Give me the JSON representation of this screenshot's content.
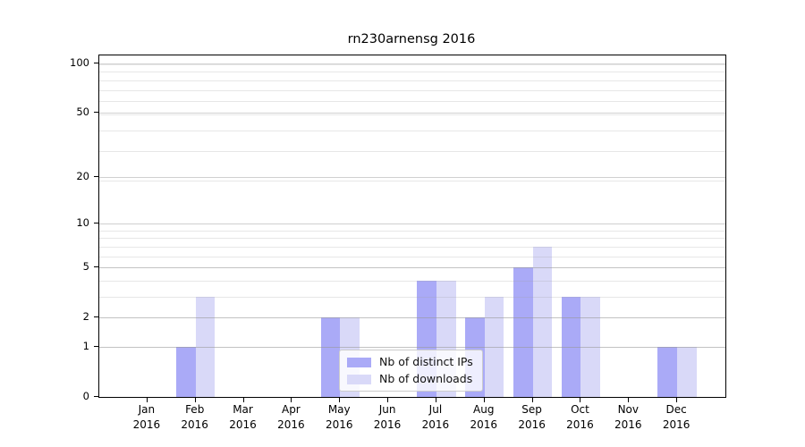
{
  "chart_data": {
    "type": "bar",
    "title": "rn230arnensg 2016",
    "categories": [
      "Jan",
      "Feb",
      "Mar",
      "Apr",
      "May",
      "Jun",
      "Jul",
      "Aug",
      "Sep",
      "Oct",
      "Nov",
      "Dec"
    ],
    "year": "2016",
    "series": [
      {
        "name": "Nb of distinct IPs",
        "key": "distinct-ips",
        "color": "#aaaaf7",
        "values": [
          0,
          1,
          0,
          0,
          2,
          0,
          4,
          2,
          5,
          3,
          0,
          1
        ]
      },
      {
        "name": "Nb of downloads",
        "key": "downloads",
        "color": "#d9d9f8",
        "values": [
          0,
          3,
          0,
          0,
          2,
          0,
          4,
          3,
          7,
          3,
          0,
          1
        ]
      }
    ],
    "yscale": "log1p",
    "ylim": [
      0,
      112
    ],
    "xlabel": "",
    "ylabel": "",
    "ytick_values": [
      0,
      1,
      2,
      5,
      10,
      20,
      50,
      100
    ],
    "grid": true,
    "grid_major_values": [
      1,
      2,
      5,
      10,
      20,
      50,
      100
    ],
    "grid_minor_values": [
      1,
      2,
      3,
      4,
      5,
      6,
      7,
      8,
      9,
      19,
      29,
      39,
      49,
      59,
      69,
      79,
      89,
      99
    ],
    "legend_position": "inside-bottom-center",
    "colors": {
      "bar_distinct_ips": "#aaaaf7",
      "bar_downloads": "#d9d9f8",
      "axis": "#000000",
      "text": "#000000"
    }
  }
}
